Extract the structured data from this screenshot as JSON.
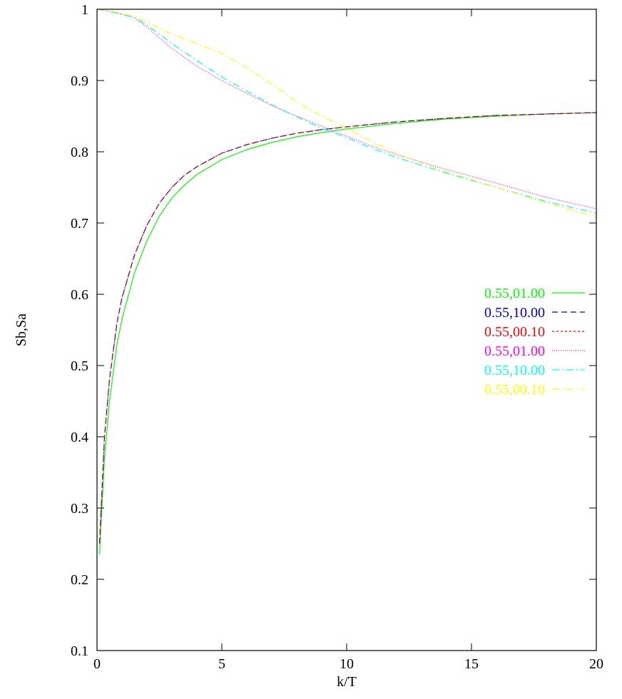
{
  "chart_data": {
    "type": "line",
    "xlabel": "k/T",
    "ylabel": "Sb,Sa",
    "xlim": [
      0,
      20
    ],
    "ylim": [
      0.1,
      1.0
    ],
    "xticks": [
      0,
      5,
      10,
      15,
      20
    ],
    "xtick_labels": [
      "0",
      "5",
      "10",
      "15",
      "20"
    ],
    "yticks": [
      0.1,
      0.2,
      0.3,
      0.4,
      0.5,
      0.6,
      0.7,
      0.8,
      0.9,
      1.0
    ],
    "ytick_labels": [
      "0.1",
      "0.2",
      "0.3",
      "0.4",
      "0.5",
      "0.6",
      "0.7",
      "0.8",
      "0.9",
      "1"
    ],
    "grid": false,
    "legend_position": "right",
    "series": [
      {
        "name": "0.55,01.00",
        "color": "#00ff00",
        "dash": "solid",
        "x": [
          0.1,
          0.3,
          0.5,
          0.8,
          1.0,
          1.5,
          2.0,
          2.5,
          3.0,
          3.5,
          4.0,
          5.0,
          6.0,
          7.0,
          8.0,
          9.0,
          10.0,
          12.0,
          14.0,
          16.0,
          18.0,
          20.0
        ],
        "y": [
          0.235,
          0.37,
          0.45,
          0.53,
          0.565,
          0.63,
          0.675,
          0.71,
          0.735,
          0.753,
          0.768,
          0.789,
          0.803,
          0.813,
          0.821,
          0.827,
          0.832,
          0.84,
          0.846,
          0.85,
          0.853,
          0.855
        ]
      },
      {
        "name": "0.55,10.00",
        "color": "#0000cc",
        "dash": "8,5",
        "x": [
          0.1,
          0.3,
          0.5,
          0.8,
          1.0,
          1.5,
          2.0,
          2.5,
          3.0,
          3.5,
          4.0,
          5.0,
          6.0,
          7.0,
          8.0,
          9.0,
          10.0,
          12.0,
          14.0,
          16.0,
          18.0,
          20.0
        ],
        "y": [
          0.25,
          0.4,
          0.48,
          0.56,
          0.595,
          0.655,
          0.697,
          0.728,
          0.75,
          0.767,
          0.779,
          0.798,
          0.81,
          0.819,
          0.826,
          0.831,
          0.835,
          0.842,
          0.847,
          0.851,
          0.853,
          0.855
        ]
      },
      {
        "name": "0.55,00.10",
        "color": "#ff0000",
        "dash": "3,3",
        "x": [
          0.1,
          0.3,
          0.5,
          0.8,
          1.0,
          1.5,
          2.0,
          2.5,
          3.0,
          3.5,
          4.0,
          5.0,
          6.0,
          7.0,
          8.0,
          9.0,
          10.0,
          12.0,
          14.0,
          16.0,
          18.0,
          20.0
        ],
        "y": [
          0.25,
          0.4,
          0.48,
          0.56,
          0.595,
          0.655,
          0.697,
          0.728,
          0.75,
          0.767,
          0.779,
          0.798,
          0.81,
          0.819,
          0.826,
          0.831,
          0.835,
          0.842,
          0.847,
          0.851,
          0.853,
          0.855
        ]
      },
      {
        "name": "0.55,01.00",
        "color": "#ff00ff",
        "dash": "1,2",
        "x": [
          0.0,
          0.5,
          1.0,
          1.5,
          2.0,
          3.0,
          4.0,
          5.0,
          6.0,
          7.0,
          8.0,
          9.0,
          10.0,
          11.0,
          12.0,
          14.0,
          16.0,
          18.0,
          20.0
        ],
        "y": [
          1.0,
          0.997,
          0.993,
          0.988,
          0.975,
          0.945,
          0.92,
          0.9,
          0.882,
          0.865,
          0.85,
          0.836,
          0.822,
          0.808,
          0.796,
          0.775,
          0.756,
          0.736,
          0.72
        ]
      },
      {
        "name": "0.55,10.00",
        "color": "#00ffff",
        "dash": "10,4,2,4",
        "x": [
          0.0,
          0.5,
          1.0,
          1.5,
          2.0,
          3.0,
          4.0,
          5.0,
          6.0,
          7.0,
          8.0,
          9.0,
          10.0,
          11.0,
          12.0,
          14.0,
          16.0,
          18.0,
          20.0
        ],
        "y": [
          1.0,
          0.997,
          0.993,
          0.988,
          0.978,
          0.952,
          0.928,
          0.905,
          0.885,
          0.866,
          0.849,
          0.833,
          0.82,
          0.805,
          0.792,
          0.77,
          0.75,
          0.73,
          0.714
        ]
      },
      {
        "name": "0.55,00.10",
        "color": "#ffff00",
        "dash": "10,4,2,4",
        "x": [
          0.0,
          0.5,
          1.0,
          1.5,
          2.0,
          3.0,
          4.0,
          5.0,
          6.0,
          7.0,
          8.0,
          9.0,
          10.0,
          11.0,
          12.0,
          14.0,
          16.0,
          18.0,
          20.0
        ],
        "y": [
          1.0,
          0.998,
          0.994,
          0.99,
          0.982,
          0.965,
          0.952,
          0.938,
          0.918,
          0.895,
          0.87,
          0.85,
          0.833,
          0.815,
          0.797,
          0.772,
          0.75,
          0.728,
          0.709
        ]
      }
    ]
  }
}
